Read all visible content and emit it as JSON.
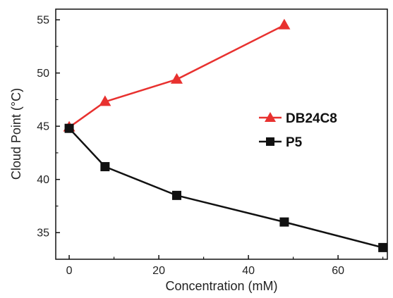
{
  "chart_data": {
    "type": "line",
    "xlabel": "Concentration (mM)",
    "ylabel": "Cloud Point (°C)",
    "xlim": [
      -3,
      71
    ],
    "ylim": [
      32.5,
      56
    ],
    "x_ticks": [
      0,
      20,
      40,
      60
    ],
    "y_ticks": [
      35,
      40,
      45,
      50,
      55
    ],
    "x_tick_labels": [
      "0",
      "20",
      "40",
      "60"
    ],
    "y_tick_labels": [
      "35",
      "40",
      "45",
      "50",
      "55"
    ],
    "grid": false,
    "legend_position": "right",
    "series": [
      {
        "name": "DB24C8",
        "color": "#e8312f",
        "marker": "triangle",
        "x": [
          0,
          8,
          24,
          48
        ],
        "y": [
          44.9,
          47.3,
          49.4,
          54.5
        ]
      },
      {
        "name": "P5",
        "color": "#111111",
        "marker": "square",
        "x": [
          0,
          8,
          24,
          48,
          70
        ],
        "y": [
          44.8,
          41.2,
          38.5,
          36.0,
          33.6
        ]
      }
    ]
  }
}
